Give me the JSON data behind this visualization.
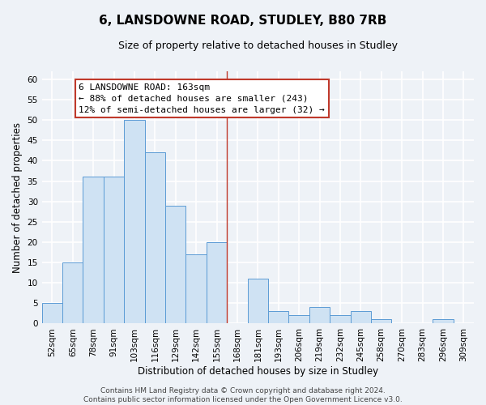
{
  "title": "6, LANSDOWNE ROAD, STUDLEY, B80 7RB",
  "subtitle": "Size of property relative to detached houses in Studley",
  "xlabel": "Distribution of detached houses by size in Studley",
  "ylabel": "Number of detached properties",
  "bin_labels": [
    "52sqm",
    "65sqm",
    "78sqm",
    "91sqm",
    "103sqm",
    "116sqm",
    "129sqm",
    "142sqm",
    "155sqm",
    "168sqm",
    "181sqm",
    "193sqm",
    "206sqm",
    "219sqm",
    "232sqm",
    "245sqm",
    "258sqm",
    "270sqm",
    "283sqm",
    "296sqm",
    "309sqm"
  ],
  "bar_values": [
    5,
    15,
    36,
    36,
    50,
    42,
    29,
    17,
    20,
    0,
    11,
    3,
    2,
    4,
    2,
    3,
    1,
    0,
    0,
    1,
    0
  ],
  "bar_color": "#cfe2f3",
  "bar_edge_color": "#5b9bd5",
  "reference_line_x_label": "168sqm",
  "reference_line_color": "#c0392b",
  "annotation_text": "6 LANSDOWNE ROAD: 163sqm\n← 88% of detached houses are smaller (243)\n12% of semi-detached houses are larger (32) →",
  "annotation_box_color": "#ffffff",
  "annotation_box_edge_color": "#c0392b",
  "ylim": [
    0,
    62
  ],
  "yticks": [
    0,
    5,
    10,
    15,
    20,
    25,
    30,
    35,
    40,
    45,
    50,
    55,
    60
  ],
  "footer_text": "Contains HM Land Registry data © Crown copyright and database right 2024.\nContains public sector information licensed under the Open Government Licence v3.0.",
  "background_color": "#eef2f7",
  "grid_color": "#ffffff",
  "title_fontsize": 11,
  "subtitle_fontsize": 9,
  "axis_label_fontsize": 8.5,
  "tick_fontsize": 7.5,
  "annotation_fontsize": 8,
  "footer_fontsize": 6.5
}
